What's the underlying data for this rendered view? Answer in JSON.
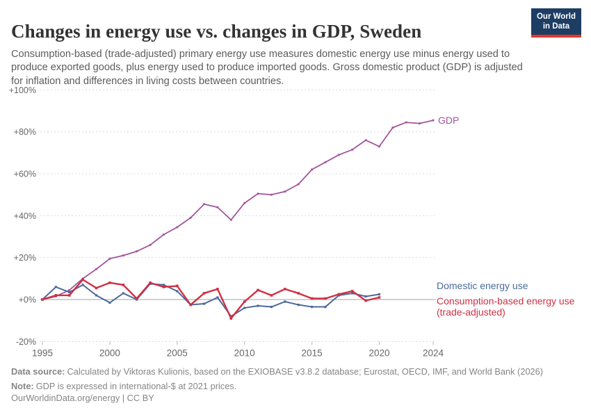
{
  "header": {
    "title": "Changes in energy use vs. changes in GDP, Sweden",
    "subtitle": "Consumption-based (trade-adjusted) primary energy use measures domestic energy use minus energy used to produce exported goods, plus energy used to produce imported goods. Gross domestic product (GDP) is adjusted for inflation and differences in living costs between countries.",
    "logo": {
      "line1": "Our World",
      "line2": "in Data",
      "bg": "#1d3d63",
      "bar": "#e0372e"
    }
  },
  "chart_data": {
    "type": "line",
    "title": "Changes in energy use vs. changes in GDP, Sweden",
    "grid": "horizontal-dashed",
    "legend_position": "right-end-of-lines",
    "x_axis": {
      "range": [
        1995,
        2024
      ],
      "ticks": [
        1995,
        2000,
        2005,
        2010,
        2015,
        2020,
        2024
      ]
    },
    "y_axis": {
      "range": [
        -20,
        100
      ],
      "unit": "%",
      "ticks": [
        100,
        80,
        60,
        40,
        20,
        0,
        -20
      ],
      "labels": [
        "+100%",
        "+80%",
        "+60%",
        "+40%",
        "+20%",
        "+0%",
        "-20%"
      ]
    },
    "series": [
      {
        "name": "GDP",
        "color": "#a2559c",
        "x": [
          1995,
          1996,
          1997,
          1998,
          1999,
          2000,
          2001,
          2002,
          2003,
          2004,
          2005,
          2006,
          2007,
          2008,
          2009,
          2010,
          2011,
          2012,
          2013,
          2014,
          2015,
          2016,
          2017,
          2018,
          2019,
          2020,
          2021,
          2022,
          2023,
          2024
        ],
        "values": [
          0,
          1.5,
          4.5,
          10,
          14.5,
          19.5,
          21,
          23,
          26,
          31,
          34.5,
          39,
          45.5,
          44,
          38,
          46,
          50.5,
          50,
          51.5,
          55,
          62,
          65.5,
          69,
          71.5,
          76,
          73,
          82,
          84.5,
          84,
          85.5
        ]
      },
      {
        "name": "Domestic energy use",
        "color": "#4c6a9c",
        "x": [
          1995,
          1996,
          1997,
          1998,
          1999,
          2000,
          2001,
          2002,
          2003,
          2004,
          2005,
          2006,
          2007,
          2008,
          2009,
          2010,
          2011,
          2012,
          2013,
          2014,
          2015,
          2016,
          2017,
          2018,
          2019,
          2020
        ],
        "values": [
          0,
          6,
          3.5,
          7,
          2,
          -1.5,
          3,
          0,
          7.5,
          7,
          4,
          -2.5,
          -2,
          1,
          -8,
          -4,
          -3,
          -3.5,
          -1,
          -2.5,
          -3.5,
          -3.5,
          2,
          3,
          1.5,
          2.5
        ]
      },
      {
        "name": "Consumption-based energy use (trade-adjusted)",
        "color": "#d02f44",
        "x": [
          1995,
          1996,
          1997,
          1998,
          1999,
          2000,
          2001,
          2002,
          2003,
          2004,
          2005,
          2006,
          2007,
          2008,
          2009,
          2010,
          2011,
          2012,
          2013,
          2014,
          2015,
          2016,
          2017,
          2018,
          2019,
          2020
        ],
        "values": [
          0,
          2,
          2,
          9.5,
          5.5,
          8,
          7,
          0.5,
          8,
          6,
          6.5,
          -2.5,
          3,
          5,
          -9,
          -1,
          4.5,
          2,
          5,
          3,
          0.5,
          0.5,
          2.5,
          4,
          -0.5,
          1
        ]
      }
    ]
  },
  "footer": {
    "source_label": "Data source:",
    "source_text": "Calculated by Viktoras Kulionis, based on the EXIOBASE v3.8.2 database; Eurostat, OECD, IMF, and World Bank (2026)",
    "note_label": "Note:",
    "note_text": "GDP is expressed in international-$ at 2021 prices.",
    "citation": "OurWorldinData.org/energy | CC BY"
  }
}
